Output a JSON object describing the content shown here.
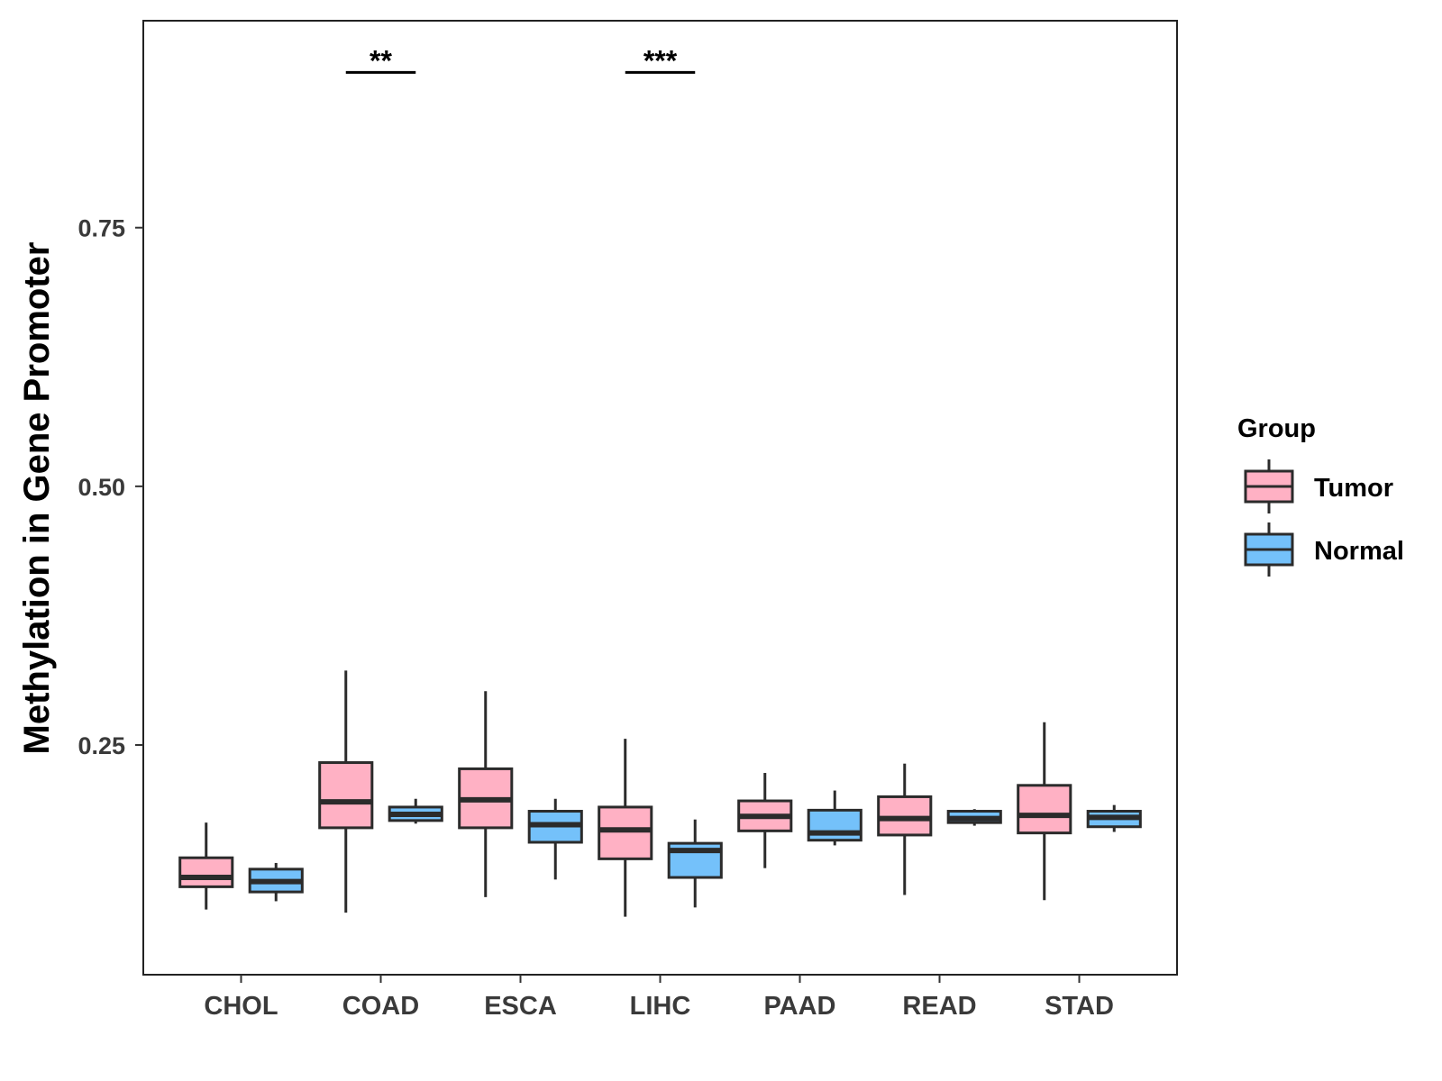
{
  "chart_data": {
    "type": "box",
    "title": "",
    "xlabel": "",
    "ylabel": "Methylation in Gene Promoter",
    "ylim": [
      0.028,
      0.95
    ],
    "yticks": [
      0.25,
      0.5,
      0.75
    ],
    "ytick_labels": [
      "0.25",
      "0.50",
      "0.75"
    ],
    "categories": [
      "CHOL",
      "COAD",
      "ESCA",
      "LIHC",
      "PAAD",
      "READ",
      "STAD"
    ],
    "grid": false,
    "legend": {
      "title": "Group",
      "position": "right"
    },
    "series": [
      {
        "name": "Tumor",
        "color": "#FFB1C4",
        "boxes": [
          {
            "category": "CHOL",
            "min": 0.091,
            "q1": 0.113,
            "median": 0.122,
            "q3": 0.141,
            "max": 0.175
          },
          {
            "category": "COAD",
            "min": 0.088,
            "q1": 0.17,
            "median": 0.195,
            "q3": 0.233,
            "max": 0.322
          },
          {
            "category": "ESCA",
            "min": 0.103,
            "q1": 0.17,
            "median": 0.197,
            "q3": 0.227,
            "max": 0.302
          },
          {
            "category": "LIHC",
            "min": 0.084,
            "q1": 0.14,
            "median": 0.168,
            "q3": 0.19,
            "max": 0.256
          },
          {
            "category": "PAAD",
            "min": 0.131,
            "q1": 0.167,
            "median": 0.181,
            "q3": 0.196,
            "max": 0.223
          },
          {
            "category": "READ",
            "min": 0.105,
            "q1": 0.163,
            "median": 0.179,
            "q3": 0.2,
            "max": 0.232
          },
          {
            "category": "STAD",
            "min": 0.1,
            "q1": 0.165,
            "median": 0.182,
            "q3": 0.211,
            "max": 0.272
          }
        ]
      },
      {
        "name": "Normal",
        "color": "#74C1FA",
        "boxes": [
          {
            "category": "CHOL",
            "min": 0.099,
            "q1": 0.108,
            "median": 0.118,
            "q3": 0.13,
            "max": 0.136
          },
          {
            "category": "COAD",
            "min": 0.174,
            "q1": 0.177,
            "median": 0.183,
            "q3": 0.19,
            "max": 0.198
          },
          {
            "category": "ESCA",
            "min": 0.12,
            "q1": 0.156,
            "median": 0.173,
            "q3": 0.186,
            "max": 0.198
          },
          {
            "category": "LIHC",
            "min": 0.093,
            "q1": 0.122,
            "median": 0.148,
            "q3": 0.155,
            "max": 0.178
          },
          {
            "category": "PAAD",
            "min": 0.153,
            "q1": 0.158,
            "median": 0.165,
            "q3": 0.187,
            "max": 0.206
          },
          {
            "category": "READ",
            "min": 0.172,
            "q1": 0.175,
            "median": 0.179,
            "q3": 0.186,
            "max": 0.188
          },
          {
            "category": "STAD",
            "min": 0.166,
            "q1": 0.171,
            "median": 0.18,
            "q3": 0.186,
            "max": 0.192
          }
        ]
      }
    ],
    "annotations": [
      {
        "category": "COAD",
        "text": "**",
        "y": 0.9
      },
      {
        "category": "LIHC",
        "text": "***",
        "y": 0.9
      }
    ]
  }
}
